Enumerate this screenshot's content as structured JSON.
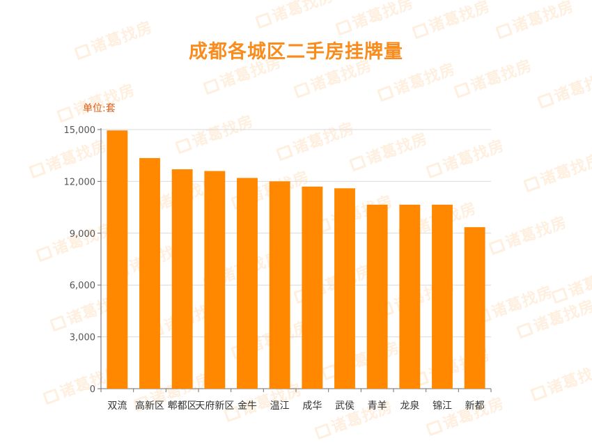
{
  "chart_data": {
    "type": "bar",
    "title": "成都各城区二手房挂牌量",
    "unit_label": "单位:套",
    "categories": [
      "双流",
      "高新区",
      "郫都区",
      "天府新区",
      "金牛",
      "温江",
      "成华",
      "武侯",
      "青羊",
      "龙泉",
      "锦江",
      "新都"
    ],
    "values": [
      14950,
      13350,
      12700,
      12600,
      12200,
      12000,
      11700,
      11600,
      10650,
      10650,
      10650,
      9350
    ],
    "ylim": [
      0,
      15000
    ],
    "y_ticks": [
      0,
      3000,
      6000,
      9000,
      12000,
      15000
    ],
    "y_tick_labels": [
      "0",
      "3,000",
      "6,000",
      "9,000",
      "12,000",
      "15,000"
    ],
    "grid": true,
    "colors": {
      "bar": "#ff8800",
      "title": "#f98c1d",
      "unit": "#e05a12",
      "grid": "#d9d9d9",
      "axis": "#6e6e6e",
      "tick_text": "#555555"
    }
  },
  "watermark": {
    "text": "诸葛找房"
  }
}
